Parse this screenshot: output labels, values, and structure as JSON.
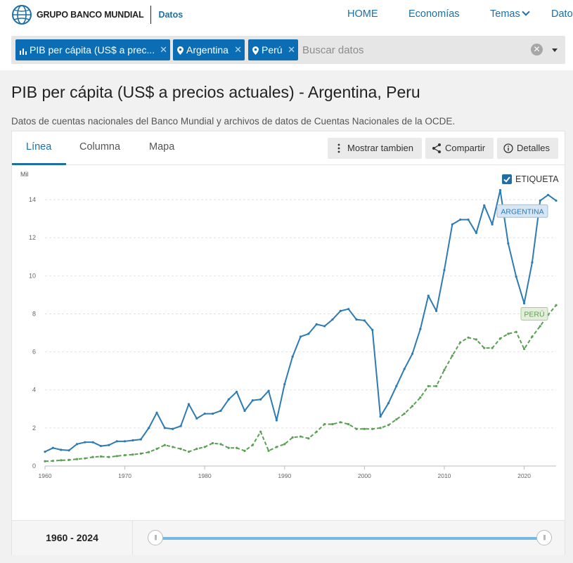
{
  "header": {
    "brand": "GRUPO BANCO MUNDIAL",
    "section": "Datos",
    "nav": [
      {
        "label": "HOME"
      },
      {
        "label": "Economías"
      },
      {
        "label": "Temas"
      },
      {
        "label": "Dato"
      }
    ]
  },
  "search": {
    "chips": [
      {
        "label": "PIB per cápita (US$ a prec..."
      },
      {
        "label": "Argentina"
      },
      {
        "label": "Perú"
      }
    ],
    "placeholder": "Buscar datos"
  },
  "page": {
    "title": "PIB per cápita (US$ a precios actuales) - Argentina, Peru",
    "source": "Datos de cuentas nacionales del Banco Mundial y archivos de datos de Cuentas Nacionales de la OCDE."
  },
  "tabs": [
    {
      "label": "Línea"
    },
    {
      "label": "Columna"
    },
    {
      "label": "Mapa"
    }
  ],
  "toolbar": {
    "show_also": "Mostrar tambien",
    "share": "Compartir",
    "details": "Detalles"
  },
  "chart_options": {
    "label_toggle": "ETIQUETA"
  },
  "range": {
    "label": "1960 - 2024"
  },
  "colors": {
    "argentina": "#2d7bb3",
    "peru": "#5a9f54",
    "accent": "#1d6fa5"
  },
  "chart_data": {
    "type": "line",
    "title": "PIB per cápita (US$ a precios actuales) - Argentina, Peru",
    "ylabel": "Mil",
    "xlabel": "",
    "ylim": [
      0,
      15
    ],
    "xlim": [
      1960,
      2024
    ],
    "yticks": [
      0,
      2,
      4,
      6,
      8,
      10,
      12,
      14
    ],
    "xticks": [
      1960,
      1970,
      1980,
      1990,
      2000,
      2010,
      2020
    ],
    "grid": true,
    "x": [
      1960,
      1961,
      1962,
      1963,
      1964,
      1965,
      1966,
      1967,
      1968,
      1969,
      1970,
      1971,
      1972,
      1973,
      1974,
      1975,
      1976,
      1977,
      1978,
      1979,
      1980,
      1981,
      1982,
      1983,
      1984,
      1985,
      1986,
      1987,
      1988,
      1989,
      1990,
      1991,
      1992,
      1993,
      1994,
      1995,
      1996,
      1997,
      1998,
      1999,
      2000,
      2001,
      2002,
      2003,
      2004,
      2005,
      2006,
      2007,
      2008,
      2009,
      2010,
      2011,
      2012,
      2013,
      2014,
      2015,
      2016,
      2017,
      2018,
      2019,
      2020,
      2021,
      2022,
      2023,
      2024
    ],
    "series": [
      {
        "name": "ARGENTINA",
        "values": [
          0.75,
          0.95,
          0.85,
          0.82,
          1.15,
          1.25,
          1.25,
          1.05,
          1.1,
          1.3,
          1.3,
          1.35,
          1.4,
          2.0,
          2.8,
          2.0,
          1.95,
          2.1,
          3.25,
          2.5,
          2.75,
          2.75,
          2.9,
          3.5,
          3.9,
          2.9,
          3.45,
          3.5,
          3.95,
          2.4,
          4.3,
          5.75,
          6.8,
          6.95,
          7.45,
          7.35,
          7.7,
          8.15,
          8.25,
          7.7,
          7.65,
          7.15,
          2.6,
          3.3,
          4.2,
          5.1,
          5.9,
          7.2,
          8.95,
          8.15,
          10.3,
          12.7,
          12.95,
          12.95,
          12.25,
          13.7,
          12.7,
          14.5,
          11.7,
          9.95,
          8.55,
          10.7,
          13.95,
          14.25,
          13.95
        ]
      },
      {
        "name": "PERÚ",
        "values": [
          0.25,
          0.27,
          0.3,
          0.32,
          0.36,
          0.4,
          0.47,
          0.5,
          0.47,
          0.52,
          0.57,
          0.6,
          0.65,
          0.73,
          0.9,
          1.1,
          1.0,
          0.9,
          0.75,
          0.9,
          1.0,
          1.2,
          1.15,
          0.95,
          0.95,
          0.8,
          1.1,
          1.8,
          0.8,
          1.0,
          1.15,
          1.5,
          1.55,
          1.45,
          1.8,
          2.2,
          2.2,
          2.3,
          2.2,
          1.95,
          1.95,
          1.95,
          2.0,
          2.15,
          2.45,
          2.75,
          3.15,
          3.6,
          4.2,
          4.2,
          5.05,
          5.8,
          6.5,
          6.75,
          6.65,
          6.2,
          6.2,
          6.7,
          6.95,
          7.05,
          6.15,
          6.8,
          7.35,
          7.95,
          8.45
        ]
      }
    ]
  }
}
